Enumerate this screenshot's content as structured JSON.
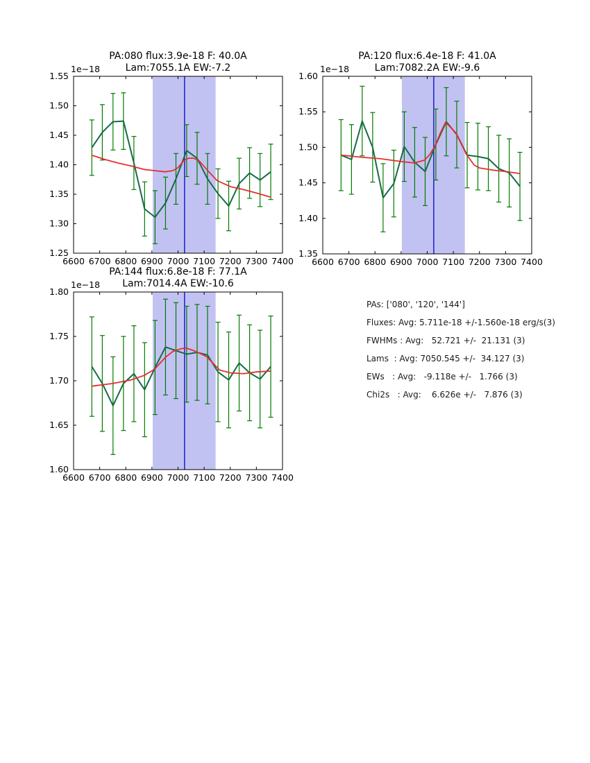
{
  "figure": {
    "background": "#ffffff"
  },
  "colors": {
    "data_line": "#156b45",
    "error_bar": "#007a00",
    "fit_line": "#e62e2e",
    "vline": "#0000cc",
    "band": "#c2c2f2",
    "axis": "#000000"
  },
  "panel": {
    "lines": [
      "PAs: ['080', '120', '144']",
      "Fluxes: Avg: 5.711e-18 +/-1.560e-18 erg/s(3)",
      "FWHMs : Avg:   52.721 +/-  21.131 (3)",
      "Lams  : Avg: 7050.545 +/-  34.127 (3)",
      "EWs   : Avg:   -9.118e +/-   1.766 (3)",
      "Chi2s   : Avg:    6.626e +/-   7.876 (3)"
    ]
  },
  "chart_data": [
    {
      "type": "line",
      "title1": "PA:080 flux:3.9e-18 F: 40.0A",
      "title2": "Lam:7055.1A EW:-7.2",
      "offset_text": "1e−18",
      "xlim": [
        6600,
        7400
      ],
      "ylim": [
        1.25,
        1.55
      ],
      "xticks": [
        6600,
        6700,
        6800,
        6900,
        7000,
        7100,
        7200,
        7300,
        7400
      ],
      "yticks": [
        "1.25",
        "1.30",
        "1.35",
        "1.40",
        "1.45",
        "1.50",
        "1.55"
      ],
      "band_x": [
        6903,
        7144
      ],
      "vline_x": 7025,
      "x": [
        6670,
        6710,
        6751,
        6791,
        6831,
        6872,
        6912,
        6952,
        6992,
        7033,
        7073,
        7113,
        7153,
        7194,
        7234,
        7274,
        7314,
        7355
      ],
      "series": [
        {
          "name": "spectrum",
          "y": [
            1.429,
            1.455,
            1.473,
            1.474,
            1.403,
            1.325,
            1.311,
            1.335,
            1.376,
            1.424,
            1.411,
            1.376,
            1.351,
            1.33,
            1.368,
            1.386,
            1.374,
            1.388
          ],
          "yerr": [
            0.047,
            0.047,
            0.048,
            0.048,
            0.045,
            0.046,
            0.045,
            0.044,
            0.043,
            0.044,
            0.044,
            0.043,
            0.042,
            0.042,
            0.043,
            0.043,
            0.045,
            0.047
          ]
        },
        {
          "name": "gauss-fit",
          "x": [
            6670,
            6720,
            6770,
            6820,
            6870,
            6910,
            6950,
            6980,
            7000,
            7020,
            7040,
            7060,
            7080,
            7100,
            7120,
            7150,
            7200,
            7250,
            7300,
            7355
          ],
          "y": [
            1.416,
            1.409,
            1.403,
            1.398,
            1.392,
            1.39,
            1.388,
            1.39,
            1.395,
            1.406,
            1.411,
            1.411,
            1.407,
            1.397,
            1.387,
            1.373,
            1.363,
            1.358,
            1.352,
            1.345
          ]
        }
      ]
    },
    {
      "type": "line",
      "title1": "PA:120 flux:6.4e-18 F: 41.0A",
      "title2": "Lam:7082.2A EW:-9.6",
      "offset_text": "1e−18",
      "xlim": [
        6600,
        7400
      ],
      "ylim": [
        1.35,
        1.6
      ],
      "xticks": [
        6600,
        6700,
        6800,
        6900,
        7000,
        7100,
        7200,
        7300,
        7400
      ],
      "yticks": [
        "1.35",
        "1.40",
        "1.45",
        "1.50",
        "1.55",
        "1.60"
      ],
      "band_x": [
        6903,
        7144
      ],
      "vline_x": 7025,
      "x": [
        6670,
        6710,
        6751,
        6791,
        6831,
        6872,
        6912,
        6952,
        6992,
        7033,
        7073,
        7113,
        7153,
        7194,
        7234,
        7274,
        7314,
        7355
      ],
      "series": [
        {
          "name": "spectrum",
          "y": [
            1.489,
            1.483,
            1.537,
            1.5,
            1.429,
            1.449,
            1.501,
            1.479,
            1.466,
            1.504,
            1.536,
            1.518,
            1.489,
            1.487,
            1.484,
            1.47,
            1.464,
            1.445
          ],
          "yerr": [
            0.05,
            0.049,
            0.049,
            0.049,
            0.048,
            0.047,
            0.049,
            0.049,
            0.048,
            0.05,
            0.048,
            0.047,
            0.046,
            0.047,
            0.045,
            0.047,
            0.048,
            0.048
          ]
        },
        {
          "name": "gauss-fit",
          "x": [
            6670,
            6750,
            6820,
            6900,
            6950,
            6990,
            7010,
            7030,
            7050,
            7070,
            7090,
            7110,
            7130,
            7150,
            7180,
            7200,
            7250,
            7300,
            7355
          ],
          "y": [
            1.489,
            1.486,
            1.484,
            1.48,
            1.478,
            1.482,
            1.49,
            1.502,
            1.52,
            1.535,
            1.528,
            1.52,
            1.505,
            1.49,
            1.475,
            1.471,
            1.468,
            1.466,
            1.463
          ]
        }
      ]
    },
    {
      "type": "line",
      "title1": "PA:144 flux:6.8e-18 F: 77.1A",
      "title2": "Lam:7014.4A EW:-10.6",
      "offset_text": "1e−18",
      "xlim": [
        6600,
        7400
      ],
      "ylim": [
        1.6,
        1.8
      ],
      "xticks": [
        6600,
        6700,
        6800,
        6900,
        7000,
        7100,
        7200,
        7300,
        7400
      ],
      "yticks": [
        "1.60",
        "1.65",
        "1.70",
        "1.75",
        "1.80"
      ],
      "band_x": [
        6903,
        7144
      ],
      "vline_x": 7025,
      "x": [
        6670,
        6710,
        6751,
        6791,
        6831,
        6872,
        6912,
        6952,
        6992,
        7033,
        7073,
        7113,
        7153,
        7194,
        7234,
        7274,
        7314,
        7355
      ],
      "series": [
        {
          "name": "spectrum",
          "y": [
            1.716,
            1.697,
            1.672,
            1.697,
            1.708,
            1.69,
            1.715,
            1.738,
            1.734,
            1.73,
            1.732,
            1.729,
            1.71,
            1.701,
            1.72,
            1.709,
            1.702,
            1.716
          ],
          "yerr": [
            0.056,
            0.054,
            0.055,
            0.053,
            0.054,
            0.053,
            0.053,
            0.054,
            0.054,
            0.054,
            0.054,
            0.055,
            0.056,
            0.054,
            0.054,
            0.054,
            0.055,
            0.057
          ]
        },
        {
          "name": "gauss-fit",
          "x": [
            6670,
            6750,
            6820,
            6870,
            6910,
            6950,
            6980,
            7010,
            7030,
            7060,
            7090,
            7110,
            7140,
            7160,
            7200,
            7250,
            7300,
            7355
          ],
          "y": [
            1.694,
            1.697,
            1.701,
            1.706,
            1.713,
            1.726,
            1.733,
            1.736,
            1.737,
            1.734,
            1.73,
            1.727,
            1.718,
            1.712,
            1.709,
            1.708,
            1.71,
            1.711
          ]
        }
      ]
    }
  ]
}
